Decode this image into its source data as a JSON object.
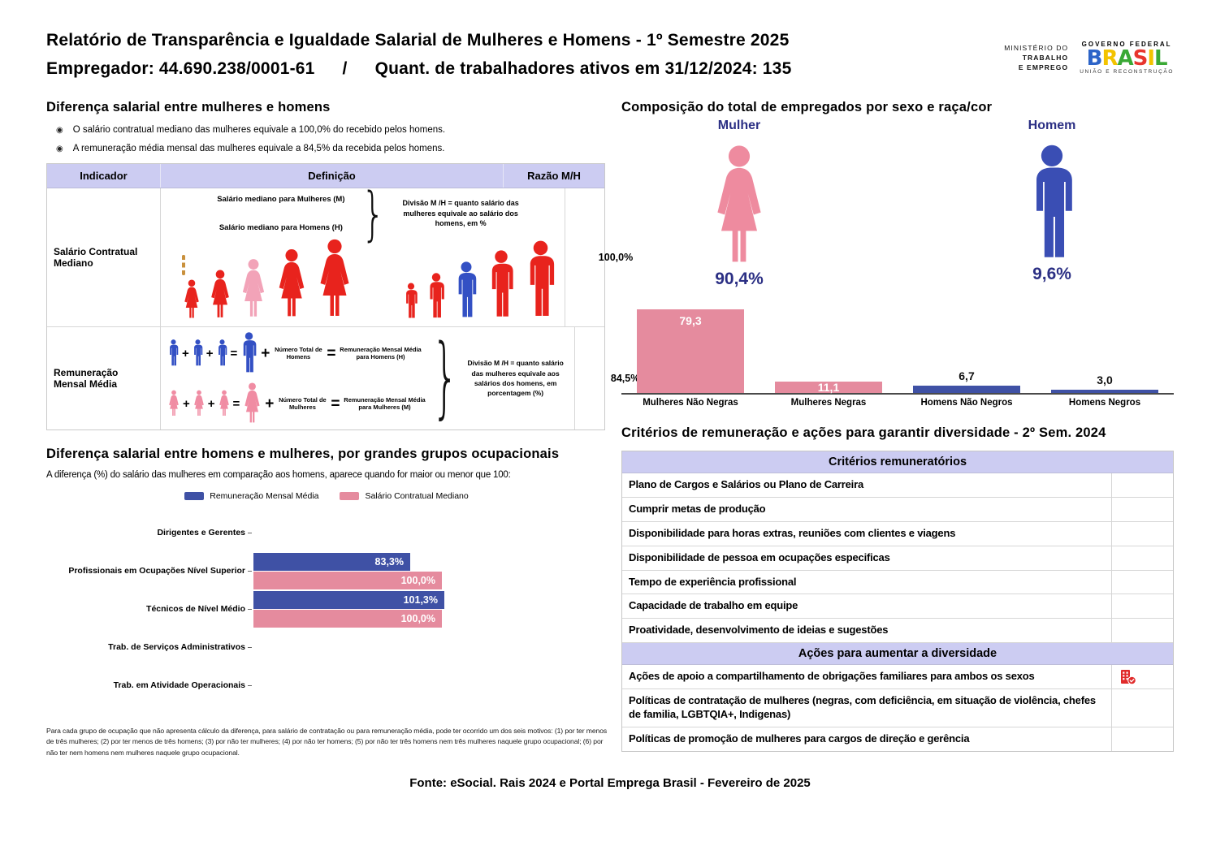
{
  "header": {
    "title_line1": "Relatório de Transparência e Igualdade Salarial de Mulheres e Homens - 1º Semestre 2025",
    "employer": "Empregador: 44.690.238/0001-61",
    "separator": "/",
    "active_workers": "Quant. de trabalhadores ativos em 31/12/2024: 135",
    "ministry_logo": {
      "line1": "MINISTÉRIO DO",
      "line2": "TRABALHO",
      "line3": "E EMPREGO"
    },
    "gov_logo": {
      "top": "GOVERNO FEDERAL",
      "brand": "BRASIL",
      "bottom": "UNIÃO E RECONSTRUÇÃO"
    }
  },
  "symbols": {
    "bullet": "◉",
    "plus": "+",
    "equals": "=",
    "divide": "+",
    "brace": "}"
  },
  "salary_diff": {
    "title": "Diferença salarial entre mulheres e homens",
    "bullets": [
      "O salário contratual mediano das mulheres equivale a 100,0% do recebido pelos homens.",
      "A remuneração média mensal das mulheres equivale a 84,5% da recebida pelos homens."
    ],
    "table": {
      "headers": [
        "Indicador",
        "Definição",
        "Razão M/H"
      ],
      "rows": [
        {
          "indicator": "Salário Contratual Mediano",
          "def_line1": "Salário mediano para Mulheres (M)",
          "def_line2": "Salário mediano para Homens (H)",
          "def_right": "Divisão M /H = quanto salário das mulheres equivale ao salário dos homens, em %",
          "ratio": "100,0%"
        },
        {
          "indicator": "Remuneração Mensal Média",
          "eq_men_label1": "Número Total de Homens",
          "eq_men_label2": "Remuneração Mensal Média para Homens (H)",
          "eq_women_label1": "Número Total de Mulheres",
          "eq_women_label2": "Remuneração Mensal Média para Mulheres (M)",
          "def_right": "Divisão M /H = quanto salário das mulheres equivale aos salários dos homens, em porcentagem (%)",
          "ratio": "84,5%"
        }
      ]
    }
  },
  "composition": {
    "title": "Composição do total de empregados por sexo e raça/cor",
    "female_label": "Mulher",
    "female_pct": "90,4%",
    "male_label": "Homem",
    "male_pct": "9,6%"
  },
  "occupational": {
    "title": "Diferença salarial entre homens e mulheres, por grandes grupos ocupacionais",
    "subtitle": "A diferença (%) do salário das mulheres em comparação aos homens, aparece quando for maior ou menor que 100:"
  },
  "criteria": {
    "title": "Critérios de remuneração e ações para garantir diversidade - 2º Sem. 2024",
    "section1_header": "Critérios remuneratórios",
    "section1_rows": [
      "Plano de Cargos e Salários ou Plano de Carreira",
      "Cumprir metas de produção",
      "Disponibilidade para horas extras, reuniões com clientes e viagens",
      "Disponibilidade de pessoa em ocupações especificas",
      "Tempo de experiência profissional",
      "Capacidade de trabalho em equipe",
      "Proatividade, desenvolvimento de ideias e sugestões"
    ],
    "section2_header": "Ações para aumentar a diversidade",
    "section2_rows": [
      {
        "label": "Ações de apoio a compartilhamento de obrigações familiares para ambos os sexos",
        "icon": "company-check-icon"
      },
      {
        "label": "Políticas de contratação de mulheres (negras, com deficiência, em situação de violência, chefes de familia, LGBTQIA+, Indigenas)",
        "icon": ""
      },
      {
        "label": "Políticas de promoção de mulheres para cargos de direção e gerência",
        "icon": ""
      }
    ]
  },
  "footnote": "Para cada grupo de ocupação que não apresenta cálculo da diferença, para salário de contratação ou para remuneração média, pode ter ocorrido um dos seis motivos: (1) por ter menos de três mulheres; (2) por ter menos de três homens; (3) por não ter mulheres; (4) por não ter homens; (5) por não ter três homens nem três mulheres naquele grupo ocupacional; (6) por não ter nem homens nem mulheres naquele grupo ocupacional.",
  "fonte": "Fonte: eSocial. Rais 2024 e Portal Emprega Brasil - Fevereiro de 2025",
  "colors": {
    "lavender_header": "#ccccf2",
    "bar_pink": "#e58b9e",
    "bar_blue": "#3f51a5",
    "navy_label": "#2b2f84",
    "figure_red": "#e8231d",
    "figure_pink_highlight": "#f2a3b8",
    "figure_blue_highlight": "#3350c4",
    "icon_female_pink": "#ee8b9f",
    "icon_male_blue": "#3a4eb4",
    "action_icon_red": "#e02b2b",
    "brasil_letter_colors": [
      "#2d64c8",
      "#f3c300",
      "#3aa935",
      "#e8352e",
      "#f3c300",
      "#3aa935"
    ]
  },
  "median_illustration": {
    "women_colors": [
      "#e8231d",
      "#e8231d",
      "#f2a3b8",
      "#e8231d",
      "#e8231d"
    ],
    "men_colors": [
      "#e8231d",
      "#e8231d",
      "#3350c4",
      "#e8231d",
      "#e8231d"
    ]
  },
  "average_illustration": {
    "male_color": "#3350c4",
    "female_color": "#f08ca3"
  },
  "chart_data": [
    {
      "type": "bar",
      "title": "Composição do total de empregados por sexo e raça/cor",
      "categories": [
        "Mulheres Não Negras",
        "Mulheres Negras",
        "Homens Não Negros",
        "Homens Negros"
      ],
      "values": [
        79.3,
        11.1,
        6.7,
        3.0
      ],
      "labels": [
        "79,3",
        "11,1",
        "6,7",
        "3,0"
      ],
      "bar_colors": [
        "#e58b9e",
        "#e58b9e",
        "#3f51a5",
        "#3f51a5"
      ],
      "label_positions": [
        "inside",
        "inside",
        "above",
        "above"
      ],
      "xlabel": "",
      "ylabel": "",
      "ylim": [
        0,
        85
      ],
      "grid": false,
      "legend_position": "none",
      "female_total_pct": 90.4,
      "male_total_pct": 9.6
    },
    {
      "type": "bar",
      "orientation": "horizontal-grouped",
      "title": "Diferença salarial entre homens e mulheres, por grandes grupos ocupacionais",
      "categories": [
        "Dirigentes e Gerentes",
        "Profissionais em Ocupações Nível Superior",
        "Técnicos de Nível Médio",
        "Trab. de Serviços Administrativos",
        "Trab. em Atividade Operacionais"
      ],
      "series": [
        {
          "name": "Remuneração Mensal Média",
          "color": "#3f51a5",
          "values": [
            null,
            83.3,
            101.3,
            null,
            null
          ],
          "labels": [
            null,
            "83,3%",
            "101,3%",
            null,
            null
          ]
        },
        {
          "name": "Salário Contratual Mediano",
          "color": "#e58b9e",
          "values": [
            null,
            100.0,
            100.0,
            null,
            null
          ],
          "labels": [
            null,
            "100,0%",
            "100,0%",
            null,
            null
          ]
        }
      ],
      "xlabel": "",
      "ylabel": "",
      "xlim": [
        0,
        185
      ],
      "grid": false,
      "legend_position": "top"
    }
  ]
}
